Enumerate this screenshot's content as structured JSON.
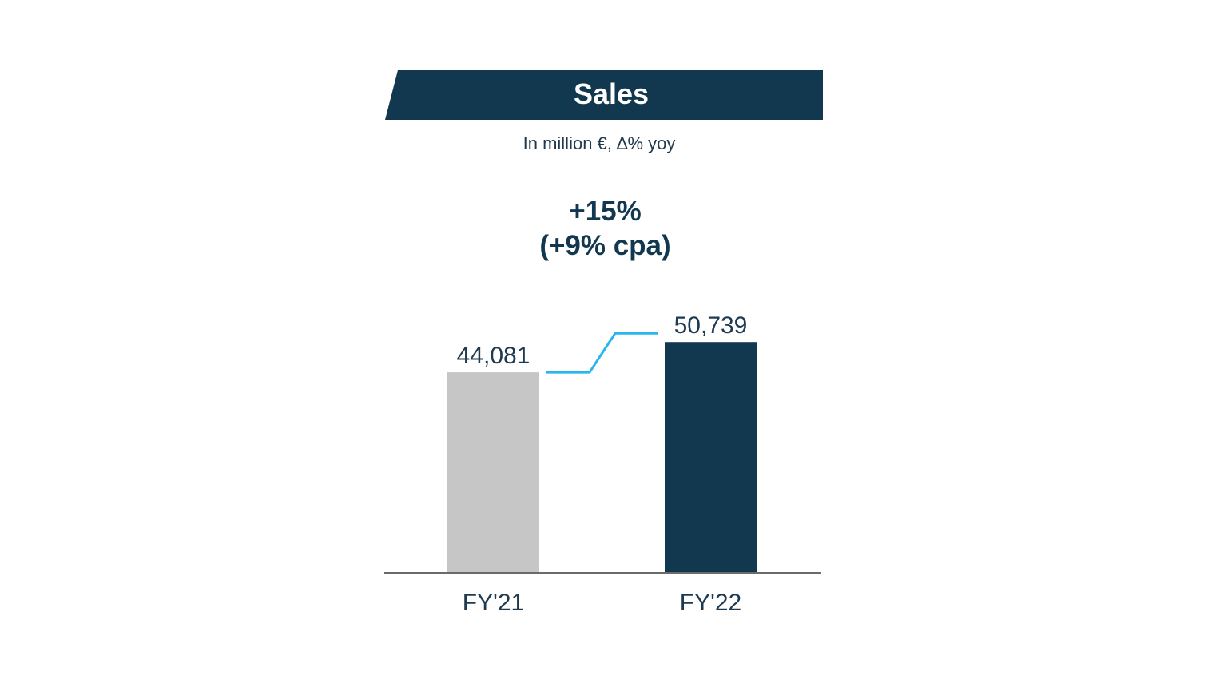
{
  "colors": {
    "banner": "#12384f",
    "fy21_bar": "#c6c6c6",
    "fy22_bar": "#12384f",
    "connector": "#29b6ef",
    "axis": "#6b6b6b",
    "text_dark": "#1f3a4f"
  },
  "chart_data": {
    "type": "bar",
    "title": "Sales",
    "subtitle": "In million €, ∆% yoy",
    "annotation": [
      "+15%",
      "(+9% cpa)"
    ],
    "categories": [
      "FY'21",
      "FY'22"
    ],
    "values": [
      44081,
      50739
    ],
    "value_labels": [
      "44,081",
      "50,739"
    ],
    "bar_colors": [
      "#c6c6c6",
      "#12384f"
    ],
    "ylim": [
      0,
      52000
    ],
    "grid": false,
    "legend": "none"
  }
}
